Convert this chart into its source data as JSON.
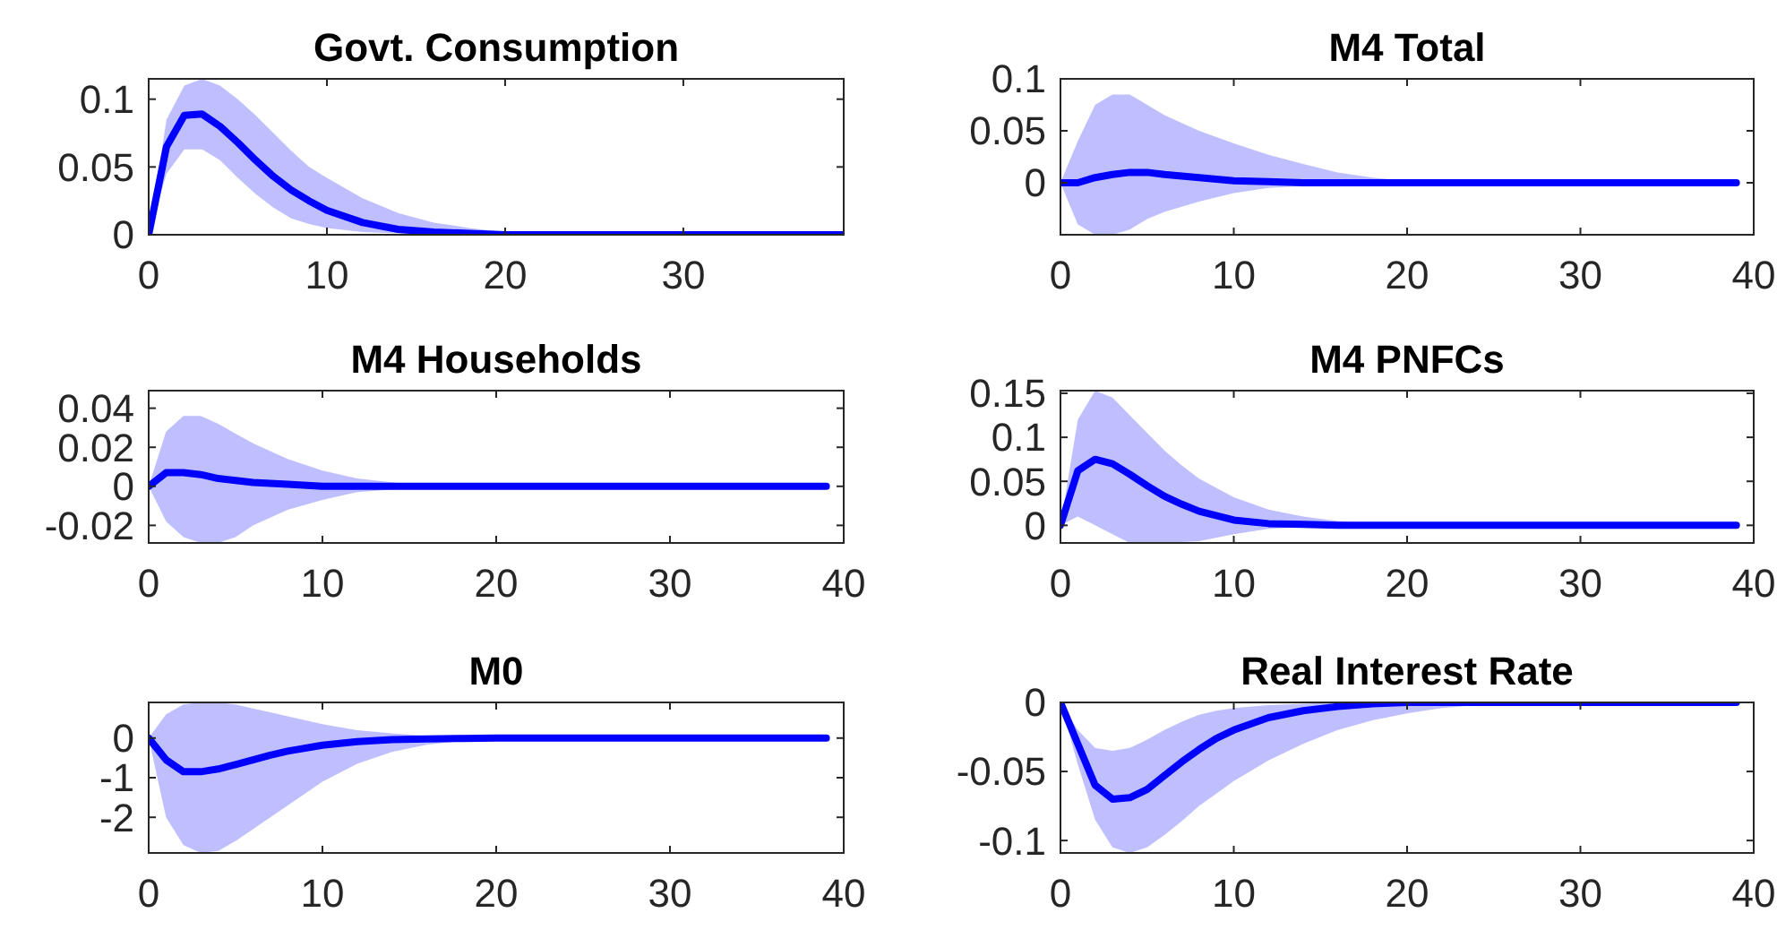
{
  "chart_data": [
    {
      "type": "line",
      "title": "Govt. Consumption",
      "xlim": [
        0,
        39
      ],
      "xticks": [
        0,
        10,
        20,
        30
      ],
      "ylim": [
        0,
        0.115
      ],
      "yticks": [
        0,
        0.05,
        0.1
      ],
      "grid": false,
      "series": [
        {
          "color": "#0000ff",
          "x": [
            0,
            1,
            2,
            3,
            4,
            5,
            6,
            7,
            8,
            9,
            10,
            12,
            14,
            16,
            18,
            20,
            25,
            39
          ],
          "values": [
            0,
            0.065,
            0.088,
            0.089,
            0.08,
            0.068,
            0.055,
            0.043,
            0.033,
            0.025,
            0.018,
            0.009,
            0.004,
            0.002,
            0.001,
            0,
            0,
            0
          ],
          "upper": [
            0,
            0.085,
            0.11,
            0.115,
            0.11,
            0.1,
            0.088,
            0.075,
            0.062,
            0.05,
            0.042,
            0.027,
            0.016,
            0.009,
            0.005,
            0.002,
            0,
            0
          ],
          "lower": [
            0,
            0.045,
            0.063,
            0.063,
            0.055,
            0.042,
            0.03,
            0.02,
            0.012,
            0.008,
            0.005,
            0.002,
            0.001,
            0,
            0,
            0,
            0,
            0
          ]
        }
      ]
    },
    {
      "type": "line",
      "title": "M4 Total",
      "xlim": [
        0,
        40
      ],
      "xticks": [
        0,
        10,
        20,
        30,
        40
      ],
      "ylim": [
        -0.05,
        0.1
      ],
      "yticks": [
        0,
        0.05,
        0.1
      ],
      "grid": false,
      "series": [
        {
          "color": "#0000ff",
          "x": [
            0,
            1,
            2,
            3,
            4,
            5,
            6,
            8,
            10,
            12,
            14,
            16,
            18,
            20,
            25,
            39
          ],
          "values": [
            0,
            0,
            0.005,
            0.008,
            0.01,
            0.01,
            0.008,
            0.005,
            0.002,
            0.001,
            0,
            0,
            0,
            0,
            0,
            0
          ],
          "upper": [
            0,
            0.04,
            0.075,
            0.085,
            0.085,
            0.075,
            0.065,
            0.05,
            0.038,
            0.027,
            0.018,
            0.01,
            0.005,
            0.002,
            0,
            0
          ],
          "lower": [
            0,
            -0.04,
            -0.05,
            -0.05,
            -0.045,
            -0.035,
            -0.028,
            -0.018,
            -0.01,
            -0.005,
            -0.003,
            -0.002,
            -0.001,
            0,
            0,
            0
          ]
        }
      ]
    },
    {
      "type": "line",
      "title": "M4 Households",
      "xlim": [
        0,
        40
      ],
      "xticks": [
        0,
        10,
        20,
        30,
        40
      ],
      "ylim": [
        -0.029,
        0.049
      ],
      "yticks": [
        -0.02,
        0,
        0.02,
        0.04
      ],
      "grid": false,
      "series": [
        {
          "color": "#0000ff",
          "x": [
            0,
            1,
            2,
            3,
            4,
            5,
            6,
            8,
            10,
            12,
            15,
            18,
            39
          ],
          "values": [
            0,
            0.007,
            0.007,
            0.006,
            0.004,
            0.003,
            0.002,
            0.001,
            0,
            0,
            0,
            0,
            0
          ],
          "upper": [
            0,
            0.028,
            0.036,
            0.036,
            0.032,
            0.027,
            0.022,
            0.014,
            0.008,
            0.004,
            0.001,
            0,
            0
          ],
          "lower": [
            0,
            -0.018,
            -0.026,
            -0.029,
            -0.029,
            -0.026,
            -0.02,
            -0.012,
            -0.007,
            -0.003,
            -0.001,
            0,
            0
          ]
        }
      ]
    },
    {
      "type": "line",
      "title": "M4 PNFCs",
      "xlim": [
        0,
        40
      ],
      "xticks": [
        0,
        10,
        20,
        30,
        40
      ],
      "ylim": [
        -0.02,
        0.153
      ],
      "yticks": [
        0,
        0.05,
        0.1,
        0.15
      ],
      "grid": false,
      "series": [
        {
          "color": "#0000ff",
          "x": [
            0,
            1,
            2,
            3,
            4,
            5,
            6,
            7,
            8,
            10,
            12,
            14,
            16,
            18,
            22,
            39
          ],
          "values": [
            0,
            0.062,
            0.075,
            0.07,
            0.058,
            0.045,
            0.033,
            0.024,
            0.016,
            0.006,
            0.002,
            0.001,
            0,
            0,
            0,
            0
          ],
          "upper": [
            0,
            0.12,
            0.153,
            0.145,
            0.125,
            0.105,
            0.085,
            0.068,
            0.053,
            0.032,
            0.018,
            0.01,
            0.005,
            0.002,
            0,
            0
          ],
          "lower": [
            0,
            0.01,
            0,
            -0.01,
            -0.02,
            -0.02,
            -0.02,
            -0.019,
            -0.018,
            -0.01,
            -0.004,
            -0.002,
            -0.001,
            0,
            0,
            0
          ]
        }
      ]
    },
    {
      "type": "line",
      "title": "M0",
      "xlim": [
        0,
        40
      ],
      "xticks": [
        0,
        10,
        20,
        30,
        40
      ],
      "ylim": [
        -2.9,
        0.9
      ],
      "yticks": [
        -2,
        -1,
        0
      ],
      "grid": false,
      "series": [
        {
          "color": "#0000ff",
          "x": [
            0,
            1,
            2,
            3,
            4,
            5,
            6,
            7,
            8,
            10,
            12,
            14,
            16,
            18,
            20,
            22,
            39
          ],
          "values": [
            0,
            -0.55,
            -0.85,
            -0.85,
            -0.78,
            -0.67,
            -0.55,
            -0.43,
            -0.33,
            -0.18,
            -0.09,
            -0.04,
            -0.02,
            -0.01,
            0,
            0,
            0
          ],
          "upper": [
            0,
            0.6,
            0.85,
            0.9,
            0.9,
            0.85,
            0.75,
            0.65,
            0.55,
            0.35,
            0.2,
            0.12,
            0.06,
            0.02,
            0,
            0,
            0
          ],
          "lower": [
            0,
            -2,
            -2.7,
            -2.9,
            -2.85,
            -2.6,
            -2.3,
            -2,
            -1.7,
            -1.1,
            -0.65,
            -0.35,
            -0.17,
            -0.07,
            -0.02,
            0,
            0
          ]
        }
      ]
    },
    {
      "type": "line",
      "title": "Real Interest Rate",
      "xlim": [
        0,
        40
      ],
      "xticks": [
        0,
        10,
        20,
        30,
        40
      ],
      "ylim": [
        -0.109,
        0
      ],
      "yticks": [
        -0.1,
        -0.05,
        0
      ],
      "grid": false,
      "series": [
        {
          "color": "#0000ff",
          "x": [
            0,
            1,
            2,
            3,
            4,
            5,
            6,
            7,
            8,
            9,
            10,
            12,
            14,
            16,
            18,
            20,
            22,
            25,
            28,
            39
          ],
          "values": [
            0,
            -0.03,
            -0.06,
            -0.07,
            -0.069,
            -0.063,
            -0.053,
            -0.043,
            -0.034,
            -0.026,
            -0.02,
            -0.011,
            -0.006,
            -0.003,
            -0.001,
            0,
            0,
            0,
            0,
            0
          ],
          "upper": [
            0,
            -0.02,
            -0.033,
            -0.035,
            -0.033,
            -0.027,
            -0.02,
            -0.014,
            -0.009,
            -0.006,
            -0.004,
            -0.002,
            -0.001,
            0,
            0,
            0,
            0,
            0,
            0,
            0
          ],
          "lower": [
            0,
            -0.045,
            -0.085,
            -0.105,
            -0.109,
            -0.105,
            -0.096,
            -0.086,
            -0.075,
            -0.066,
            -0.057,
            -0.042,
            -0.03,
            -0.02,
            -0.013,
            -0.008,
            -0.004,
            -0.001,
            0,
            0
          ]
        }
      ]
    }
  ]
}
